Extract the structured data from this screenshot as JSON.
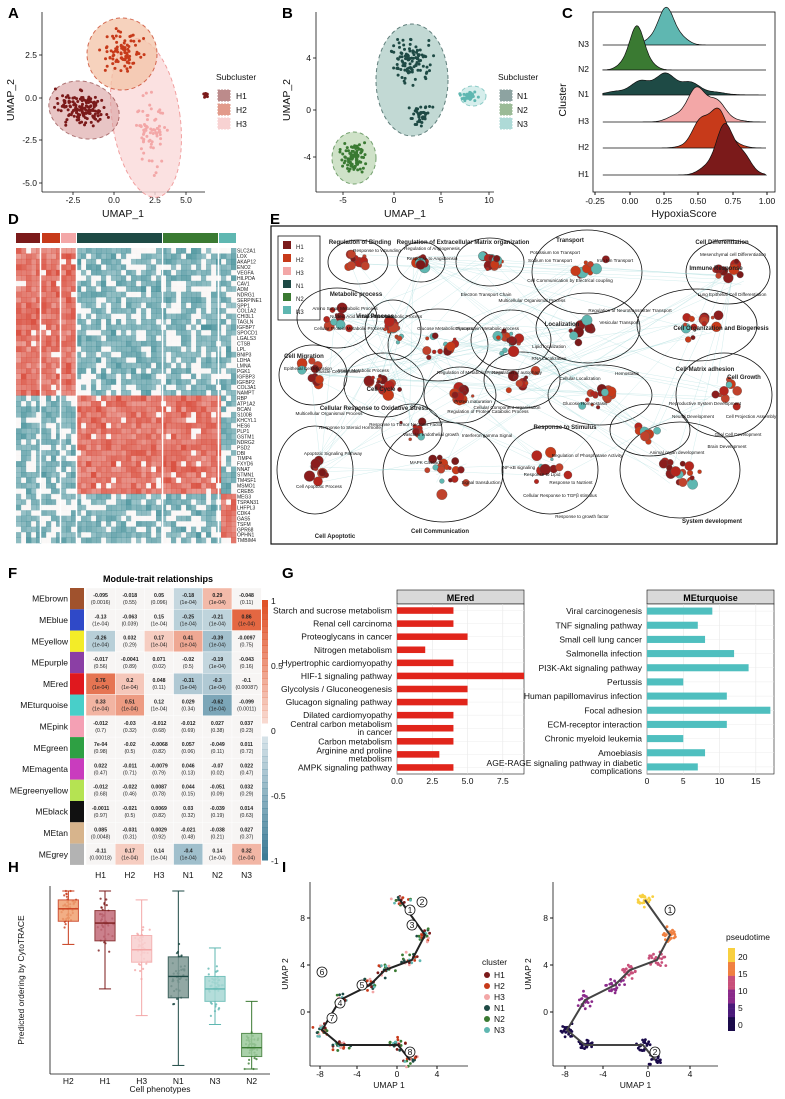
{
  "colors": {
    "H1": "#7b1a1a",
    "H2": "#c73a1a",
    "H3": "#f3a7a7",
    "N1": "#1e4a45",
    "N2": "#3a7a32",
    "N3": "#5fb7b1",
    "hmHigh": "#d84a3a",
    "hmMid": "#f5f0ee",
    "hmLow": "#3d8b95",
    "red": "#e1251b",
    "teal": "#4fbfbf"
  },
  "panels": {
    "A": "A",
    "B": "B",
    "C": "C",
    "D": "D",
    "E": "E",
    "F": "F",
    "G": "G",
    "H": "H",
    "I": "I"
  },
  "panelA": {
    "xlabel": "UMAP_1",
    "ylabel": "UMAP_2",
    "xticks": [
      "-2.5",
      "0.0",
      "2.5",
      "5.0"
    ],
    "yticks": [
      "2.5",
      "0.0",
      "-2.5",
      "-5.0"
    ],
    "legendTitle": "Subcluster",
    "legend": [
      "H1",
      "H2",
      "H3"
    ]
  },
  "panelB": {
    "xlabel": "UMAP_1",
    "ylabel": "UMAP_2",
    "xticks": [
      "-5",
      "0",
      "5",
      "10"
    ],
    "yticks": [
      "4",
      "0",
      "-4"
    ],
    "legendTitle": "Subcluster",
    "legend": [
      "N1",
      "N2",
      "N3"
    ]
  },
  "panelC": {
    "xlabel": "HypoxiaScore",
    "ylabel": "Cluster",
    "xticks": [
      "-0.25",
      "0.00",
      "0.25",
      "0.50",
      "0.75",
      "1.00"
    ],
    "rows": [
      "N3",
      "N2",
      "N1",
      "H3",
      "H2",
      "H1"
    ]
  },
  "panelD": {
    "genes": [
      "SLC2A1",
      "LOX",
      "AKAP12",
      "ENO2",
      "VEGFA",
      "HILPDA",
      "CAV1",
      "ADM",
      "NDRG1",
      "SERPINE1",
      "SPP1",
      "COL1A2",
      "CHI3L1",
      "TAGLN",
      "IGFBP7",
      "SPOCD1",
      "LGALS3",
      "CTSB",
      "LPL",
      "BNIP3",
      "LDHA",
      "LMNA",
      "PGK1",
      "IGFBP3",
      "IGFBP2",
      "COL3A1",
      "NAMPT",
      "RBP",
      "ATP1A2",
      "BCAN",
      "S100B",
      "KHCYL1",
      "HES6",
      "PLP1",
      "GSTM1",
      "NDRG2",
      "PSD2",
      "DBI",
      "TIMP4",
      "FXYD6",
      "NNAT",
      "STMN1",
      "TM4SF1",
      "MSMO1",
      "CREB5",
      "MEG3",
      "TSPAN31",
      "LHFPL3",
      "CDK4",
      "GAS5",
      "TSFM",
      "GPR68",
      "OPHN1",
      "TMBIM4"
    ]
  },
  "panelE": {
    "legend": [
      "H1",
      "H2",
      "H3",
      "N1",
      "N2",
      "N3"
    ],
    "groups": [
      "Regulation of Binding",
      "Regulation of Extracellular Matrix organization",
      "Transport",
      "Cell Differentiation",
      "Immune Response",
      "Metabolic process",
      "Viral Process",
      "Localization",
      "Cell Organization and Biogenesis",
      "Cell Migration",
      "Cell Cycle",
      "Cellular Response to Oxidative Stress",
      "Cell-Matrix adhesion",
      "Cell Growth",
      "Response to Stimulus",
      "Cell Apoptotic",
      "Cell Communication",
      "System development"
    ],
    "terms": [
      "Regulation of Angiogenesis",
      "Response to Wounding",
      "Response to Angiotensin",
      "Electron Transport Chain",
      "Potassium Ion Transport",
      "Sodium Ion Transport",
      "Iron Ion Transport",
      "Cell Communication by Electrical coupling",
      "Multicellular Organismal Process",
      "Regulation of Neurotransmitter Transport",
      "Vesicular Transport",
      "Mesenchymal cell Differentiation",
      "Lung Epithelial Cell Differentiation",
      "Amino Sugar Metabolic Process",
      "Nucleic Acid Metabolic Process",
      "RNA Metabolic Process",
      "Cellular Protein Metabolic Process",
      "Glucose Metabolic Process",
      "Glycoprotein Metabolic process",
      "Lipid localization",
      "RNA Localization",
      "Cellular Localization",
      "Epithelial Cell Migration",
      "Muscle Cell Migration",
      "Amine Metabolic Process",
      "Regulation of Metabolic Process",
      "Regulation of autophagy",
      "Cellular Component organization",
      "Hemostasis",
      "Multicellular Organismal Process",
      "Response to Steroid Hormone",
      "Response to Tumor Necrosis Factor",
      "Protein maturation",
      "Regulation of Protein Catabolic Process",
      "Glucose Homeostasis",
      "Reproductive System Development",
      "Neural Development",
      "Glial Cell Development",
      "Brain Development",
      "Animal organ development",
      "Cell Projection Assembly",
      "Apoptotic Signaling Pathway",
      "Cell Apoptotic Process",
      "MAPK Cascade",
      "Vascular endothelial growth",
      "Interferon gamma Signal",
      "NF-κB signaling",
      "Signal transduction",
      "Response to Lipid",
      "Regulation of Phosphatase Activity",
      "Response to Nutrient",
      "Cellular Response to TGFβ stimulus",
      "Response to growth factor"
    ]
  },
  "panelF": {
    "title": "Module-trait relationships",
    "modules": [
      "MEbrown",
      "MEblue",
      "MEyellow",
      "MEpurple",
      "MEred",
      "MEturquoise",
      "MEpink",
      "MEgreen",
      "MEmagenta",
      "MEgreenyellow",
      "MEblack",
      "MEtan",
      "MEgrey"
    ],
    "moduleColors": [
      "#a0522d",
      "#2f49c8",
      "#f3ec28",
      "#8b3fa5",
      "#e0181e",
      "#48cfc9",
      "#f4a0b4",
      "#2ea043",
      "#c93cbe",
      "#b5e352",
      "#111111",
      "#d7b48c",
      "#b3b3b3"
    ],
    "traits": [
      "H1",
      "H2",
      "H3",
      "N1",
      "N2",
      "N3"
    ],
    "values": [
      [
        "-0.095",
        "-0.018",
        "0.05",
        "-0.18",
        "0.29",
        "-0.048"
      ],
      [
        "-0.13",
        "-0.063",
        "0.15",
        "-0.25",
        "-0.21",
        "0.86"
      ],
      [
        "-0.26",
        "0.032",
        "0.17",
        "0.41",
        "-0.39",
        "-0.0097"
      ],
      [
        "-0.017",
        "-0.0041",
        "0.071",
        "-0.02",
        "-0.19",
        "-0.043"
      ],
      [
        "0.76",
        "0.2",
        "0.048",
        "-0.31",
        "-0.3",
        "-0.1"
      ],
      [
        "0.33",
        "0.51",
        "0.12",
        "0.029",
        "-0.62",
        "-0.099"
      ],
      [
        "-0.012",
        "-0.03",
        "-0.012",
        "-0.012",
        "0.027",
        "0.037"
      ],
      [
        "7e-04",
        "-0.02",
        "-0.0068",
        "0.057",
        "-0.049",
        "0.011"
      ],
      [
        "0.022",
        "-0.011",
        "-0.0079",
        "0.046",
        "-0.07",
        "0.022"
      ],
      [
        "-0.012",
        "-0.022",
        "0.0087",
        "0.044",
        "-0.051",
        "0.032"
      ],
      [
        "-0.0011",
        "-0.021",
        "0.0069",
        "0.03",
        "-0.039",
        "0.014"
      ],
      [
        "0.085",
        "-0.031",
        "0.0029",
        "-0.021",
        "-0.038",
        "0.027"
      ],
      [
        "-0.11",
        "0.17",
        "0.14",
        "-0.4",
        "0.14",
        "0.32"
      ]
    ],
    "pvals": [
      [
        "(0.0016)",
        "(0.55)",
        "(0.096)",
        "(1e-04)",
        "(1e-04)",
        "(0.11)"
      ],
      [
        "(1e-04)",
        "(0.039)",
        "(1e-04)",
        "(1e-04)",
        "(1e-04)",
        "(1e-04)"
      ],
      [
        "(1e-04)",
        "(0.29)",
        "(1e-04)",
        "(1e-04)",
        "(1e-04)",
        "(0.75)"
      ],
      [
        "(0.56)",
        "(0.89)",
        "(0.02)",
        "(0.5)",
        "(1e-04)",
        "(0.16)"
      ],
      [
        "(1e-04)",
        "(1e-04)",
        "(0.11)",
        "(1e-04)",
        "(1e-04)",
        "(0.00087)"
      ],
      [
        "(1e-04)",
        "(1e-04)",
        "(1e-04)",
        "(0.34)",
        "(1e-04)",
        "(0.0011)"
      ],
      [
        "(0.7)",
        "(0.32)",
        "(0.68)",
        "(0.69)",
        "(0.38)",
        "(0.23)"
      ],
      [
        "(0.98)",
        "(0.5)",
        "(0.82)",
        "(0.06)",
        "(0.11)",
        "(0.72)"
      ],
      [
        "(0.47)",
        "(0.71)",
        "(0.79)",
        "(0.13)",
        "(0.02)",
        "(0.47)"
      ],
      [
        "(0.68)",
        "(0.46)",
        "(0.78)",
        "(0.15)",
        "(0.09)",
        "(0.29)"
      ],
      [
        "(0.97)",
        "(0.5)",
        "(0.82)",
        "(0.32)",
        "(0.19)",
        "(0.63)"
      ],
      [
        "(0.0048)",
        "(0.31)",
        "(0.92)",
        "(0.48)",
        "(0.21)",
        "(0.37)"
      ],
      [
        "(0.00018)",
        "(1e-04)",
        "(1e-04)",
        "(1e-04)",
        "(1e-04)",
        "(1e-04)"
      ]
    ],
    "scaleTicks": [
      "1",
      "0.5",
      "0",
      "-0.5",
      "-1"
    ]
  },
  "chart_data": [
    {
      "type": "bar",
      "title": "MEred",
      "orientation": "horizontal",
      "categories": [
        "Starch and sucrose metabolism",
        "Renal cell carcinoma",
        "Proteoglycans in cancer",
        "Nitrogen metabolism",
        "Hypertrophic cardiomyopathy",
        "HIF-1 signaling pathway",
        "Glycolysis / Gluconeogenesis",
        "Glucagon signaling pathway",
        "Dilated cardiomyopathy",
        "Central carbon metabolism in cancer",
        "Carbon metabolism",
        "Arginine and proline metabolism",
        "AMPK signaling pathway"
      ],
      "values": [
        4,
        4,
        5,
        2,
        4,
        9,
        5,
        5,
        4,
        4,
        4,
        3,
        4
      ],
      "xlim": [
        0,
        9
      ],
      "xticks": [
        "0.0",
        "2.5",
        "5.0",
        "7.5"
      ]
    },
    {
      "type": "bar",
      "title": "MEturquoise",
      "orientation": "horizontal",
      "categories": [
        "Viral carcinogenesis",
        "TNF signaling pathway",
        "Small cell lung cancer",
        "Salmonella infection",
        "PI3K-Akt signaling pathway",
        "Pertussis",
        "Human papillomavirus infection",
        "Focal adhesion",
        "ECM-receptor interaction",
        "Chronic myeloid leukemia",
        "Amoebiasis",
        "AGE-RAGE signaling pathway in diabetic complications"
      ],
      "values": [
        9,
        7,
        8,
        12,
        14,
        5,
        11,
        17,
        11,
        5,
        8,
        7
      ],
      "xlim": [
        0,
        17.5
      ],
      "xticks": [
        "0",
        "5",
        "10",
        "15"
      ]
    },
    {
      "type": "box",
      "title": "",
      "ylabel": "Predicted ordering by CytoTRACE",
      "xlabel": "Cell phenotypes",
      "categories": [
        "H2",
        "H1",
        "H3",
        "N1",
        "N3",
        "N2"
      ],
      "median": [
        0.9,
        0.82,
        0.67,
        0.52,
        0.45,
        0.12
      ],
      "q1": [
        0.83,
        0.72,
        0.6,
        0.4,
        0.38,
        0.07
      ],
      "q3": [
        0.95,
        0.89,
        0.75,
        0.63,
        0.52,
        0.2
      ],
      "wlow": [
        0.7,
        0.45,
        0.3,
        0.02,
        0.25,
        0.0
      ],
      "whigh": [
        1.0,
        1.0,
        0.95,
        1.0,
        0.68,
        0.38
      ],
      "ylim": [
        0,
        1
      ]
    }
  ],
  "panelI": {
    "xlabel": "UMAP 1",
    "ylabel": "UMAP 2",
    "xticks": [
      "-8",
      "-4",
      "0",
      "4"
    ],
    "yticks": [
      "8",
      "4",
      "0"
    ],
    "legendTitle": "cluster",
    "legend": [
      "H1",
      "H2",
      "H3",
      "N1",
      "N2",
      "N3"
    ],
    "nodes": [
      "1",
      "2",
      "3",
      "4",
      "5",
      "6",
      "7",
      "8"
    ],
    "pseudotimeTitle": "pseudotime",
    "pseudotimeTicks": [
      "20",
      "15",
      "10",
      "5",
      "0"
    ],
    "rightNodes": [
      "1",
      "2"
    ]
  }
}
